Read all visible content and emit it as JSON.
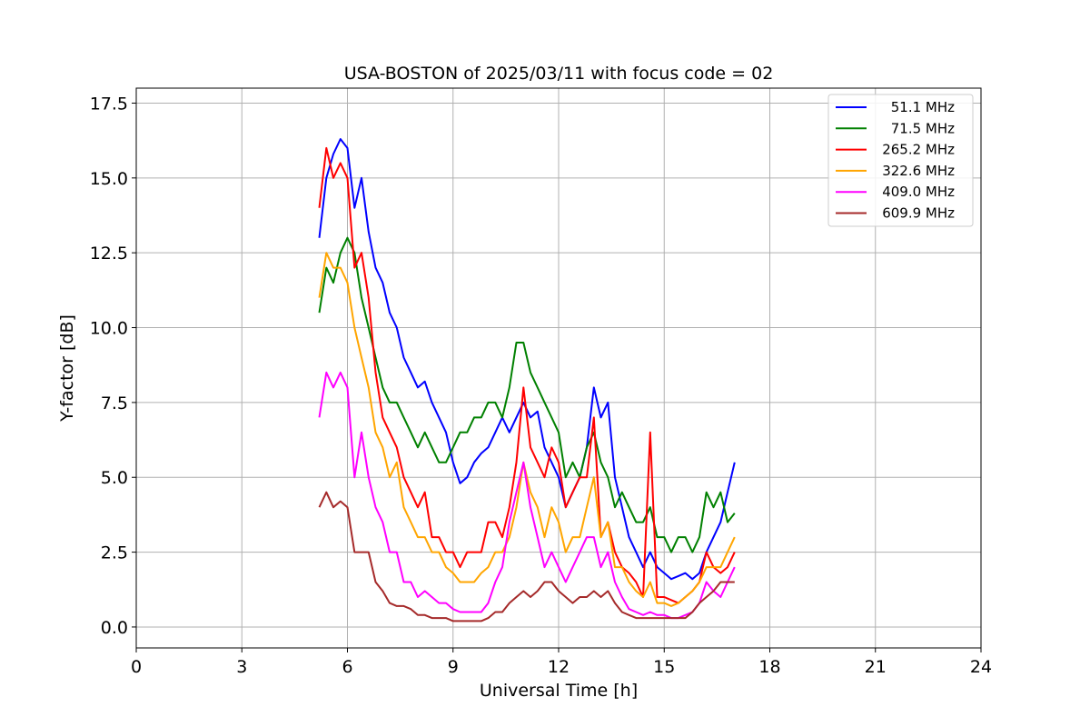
{
  "chart_data": {
    "type": "line",
    "title": "USA-BOSTON of 2025/03/11 with focus code = 02",
    "xlabel": "Universal Time [h]",
    "ylabel": "Y-factor [dB]",
    "xlim": [
      0,
      24
    ],
    "ylim": [
      -0.7,
      18.0
    ],
    "xticks": [
      0,
      3,
      6,
      9,
      12,
      15,
      18,
      21,
      24
    ],
    "xtick_labels": [
      "0",
      "3",
      "6",
      "9",
      "12",
      "15",
      "18",
      "21",
      "24"
    ],
    "yticks": [
      0.0,
      2.5,
      5.0,
      7.5,
      10.0,
      12.5,
      15.0,
      17.5
    ],
    "ytick_labels": [
      "0.0",
      "2.5",
      "5.0",
      "7.5",
      "10.0",
      "12.5",
      "15.0",
      "17.5"
    ],
    "grid": true,
    "legend_position": "top-right",
    "series": [
      {
        "name": "51.1 MHz",
        "color": "#0000ff",
        "x": [
          5.2,
          5.4,
          5.6,
          5.8,
          6.0,
          6.2,
          6.4,
          6.6,
          6.8,
          7.0,
          7.2,
          7.4,
          7.6,
          7.8,
          8.0,
          8.2,
          8.4,
          8.6,
          8.8,
          9.0,
          9.2,
          9.4,
          9.6,
          9.8,
          10.0,
          10.2,
          10.4,
          10.6,
          10.8,
          11.0,
          11.2,
          11.4,
          11.6,
          11.8,
          12.0,
          12.2,
          12.4,
          12.6,
          12.8,
          13.0,
          13.2,
          13.4,
          13.6,
          13.8,
          14.0,
          14.2,
          14.4,
          14.6,
          14.8,
          15.0,
          15.2,
          15.4,
          15.6,
          15.8,
          16.0,
          16.2,
          16.4,
          16.6,
          16.8,
          17.0
        ],
        "y": [
          13.0,
          15.0,
          15.8,
          16.3,
          16.0,
          14.0,
          15.0,
          13.2,
          12.0,
          11.5,
          10.5,
          10.0,
          9.0,
          8.5,
          8.0,
          8.2,
          7.5,
          7.0,
          6.5,
          5.5,
          4.8,
          5.0,
          5.5,
          5.8,
          6.0,
          6.5,
          7.0,
          6.5,
          7.0,
          7.5,
          7.0,
          7.2,
          6.0,
          5.5,
          5.0,
          4.0,
          4.5,
          5.0,
          6.0,
          8.0,
          7.0,
          7.5,
          5.0,
          4.0,
          3.0,
          2.5,
          2.0,
          2.5,
          2.0,
          1.8,
          1.6,
          1.7,
          1.8,
          1.6,
          1.8,
          2.5,
          3.0,
          3.5,
          4.5,
          5.5
        ]
      },
      {
        "name": "71.5 MHz",
        "color": "#008000",
        "x": [
          5.2,
          5.4,
          5.6,
          5.8,
          6.0,
          6.2,
          6.4,
          6.6,
          6.8,
          7.0,
          7.2,
          7.4,
          7.6,
          7.8,
          8.0,
          8.2,
          8.4,
          8.6,
          8.8,
          9.0,
          9.2,
          9.4,
          9.6,
          9.8,
          10.0,
          10.2,
          10.4,
          10.6,
          10.8,
          11.0,
          11.2,
          11.4,
          11.6,
          11.8,
          12.0,
          12.2,
          12.4,
          12.6,
          12.8,
          13.0,
          13.2,
          13.4,
          13.6,
          13.8,
          14.0,
          14.2,
          14.4,
          14.6,
          14.8,
          15.0,
          15.2,
          15.4,
          15.6,
          15.8,
          16.0,
          16.2,
          16.4,
          16.6,
          16.8,
          17.0
        ],
        "y": [
          10.5,
          12.0,
          11.5,
          12.5,
          13.0,
          12.5,
          11.0,
          10.0,
          9.0,
          8.0,
          7.5,
          7.5,
          7.0,
          6.5,
          6.0,
          6.5,
          6.0,
          5.5,
          5.5,
          6.0,
          6.5,
          6.5,
          7.0,
          7.0,
          7.5,
          7.5,
          7.0,
          8.0,
          9.5,
          9.5,
          8.5,
          8.0,
          7.5,
          7.0,
          6.5,
          5.0,
          5.5,
          5.0,
          6.0,
          6.5,
          5.5,
          5.0,
          4.0,
          4.5,
          4.0,
          3.5,
          3.5,
          4.0,
          3.0,
          3.0,
          2.5,
          3.0,
          3.0,
          2.5,
          3.0,
          4.5,
          4.0,
          4.5,
          3.5,
          3.8
        ]
      },
      {
        "name": "265.2 MHz",
        "color": "#ff0000",
        "x": [
          5.2,
          5.4,
          5.6,
          5.8,
          6.0,
          6.2,
          6.4,
          6.6,
          6.8,
          7.0,
          7.2,
          7.4,
          7.6,
          7.8,
          8.0,
          8.2,
          8.4,
          8.6,
          8.8,
          9.0,
          9.2,
          9.4,
          9.6,
          9.8,
          10.0,
          10.2,
          10.4,
          10.6,
          10.8,
          11.0,
          11.2,
          11.4,
          11.6,
          11.8,
          12.0,
          12.2,
          12.4,
          12.6,
          12.8,
          13.0,
          13.2,
          13.4,
          13.6,
          13.8,
          14.0,
          14.2,
          14.4,
          14.6,
          14.8,
          15.0,
          15.2,
          15.4,
          15.6,
          15.8,
          16.0,
          16.2,
          16.4,
          16.6,
          16.8,
          17.0
        ],
        "y": [
          14.0,
          16.0,
          15.0,
          15.5,
          15.0,
          12.0,
          12.5,
          11.0,
          8.5,
          7.0,
          6.5,
          6.0,
          5.0,
          4.5,
          4.0,
          4.5,
          3.0,
          3.0,
          2.5,
          2.5,
          2.0,
          2.5,
          2.5,
          2.5,
          3.5,
          3.5,
          3.0,
          4.0,
          5.5,
          8.0,
          6.0,
          5.5,
          5.0,
          6.0,
          5.5,
          4.0,
          4.5,
          5.0,
          5.0,
          7.0,
          3.0,
          3.5,
          2.5,
          2.0,
          1.8,
          1.5,
          1.0,
          6.5,
          1.0,
          1.0,
          0.9,
          0.8,
          1.0,
          1.2,
          1.5,
          2.5,
          2.0,
          1.8,
          2.0,
          2.5
        ]
      },
      {
        "name": "322.6 MHz",
        "color": "#ffa500",
        "x": [
          5.2,
          5.4,
          5.6,
          5.8,
          6.0,
          6.2,
          6.4,
          6.6,
          6.8,
          7.0,
          7.2,
          7.4,
          7.6,
          7.8,
          8.0,
          8.2,
          8.4,
          8.6,
          8.8,
          9.0,
          9.2,
          9.4,
          9.6,
          9.8,
          10.0,
          10.2,
          10.4,
          10.6,
          10.8,
          11.0,
          11.2,
          11.4,
          11.6,
          11.8,
          12.0,
          12.2,
          12.4,
          12.6,
          12.8,
          13.0,
          13.2,
          13.4,
          13.6,
          13.8,
          14.0,
          14.2,
          14.4,
          14.6,
          14.8,
          15.0,
          15.2,
          15.4,
          15.6,
          15.8,
          16.0,
          16.2,
          16.4,
          16.6,
          16.8,
          17.0
        ],
        "y": [
          11.0,
          12.5,
          12.0,
          12.0,
          11.5,
          10.0,
          9.0,
          8.0,
          6.5,
          6.0,
          5.0,
          5.5,
          4.0,
          3.5,
          3.0,
          3.0,
          2.5,
          2.5,
          2.0,
          1.8,
          1.5,
          1.5,
          1.5,
          1.8,
          2.0,
          2.5,
          2.5,
          3.0,
          4.0,
          5.5,
          4.5,
          4.0,
          3.0,
          4.0,
          3.5,
          2.5,
          3.0,
          3.0,
          4.0,
          5.0,
          3.0,
          3.5,
          2.0,
          2.0,
          1.5,
          1.2,
          1.0,
          1.5,
          0.8,
          0.8,
          0.7,
          0.8,
          1.0,
          1.2,
          1.5,
          2.0,
          2.0,
          2.0,
          2.5,
          3.0
        ]
      },
      {
        "name": "409.0 MHz",
        "color": "#ff00ff",
        "x": [
          5.2,
          5.4,
          5.6,
          5.8,
          6.0,
          6.2,
          6.4,
          6.6,
          6.8,
          7.0,
          7.2,
          7.4,
          7.6,
          7.8,
          8.0,
          8.2,
          8.4,
          8.6,
          8.8,
          9.0,
          9.2,
          9.4,
          9.6,
          9.8,
          10.0,
          10.2,
          10.4,
          10.6,
          10.8,
          11.0,
          11.2,
          11.4,
          11.6,
          11.8,
          12.0,
          12.2,
          12.4,
          12.6,
          12.8,
          13.0,
          13.2,
          13.4,
          13.6,
          13.8,
          14.0,
          14.2,
          14.4,
          14.6,
          14.8,
          15.0,
          15.2,
          15.4,
          15.6,
          15.8,
          16.0,
          16.2,
          16.4,
          16.6,
          16.8,
          17.0
        ],
        "y": [
          7.0,
          8.5,
          8.0,
          8.5,
          8.0,
          5.0,
          6.5,
          5.0,
          4.0,
          3.5,
          2.5,
          2.5,
          1.5,
          1.5,
          1.0,
          1.2,
          1.0,
          0.8,
          0.8,
          0.6,
          0.5,
          0.5,
          0.5,
          0.5,
          0.8,
          1.5,
          2.0,
          3.5,
          4.5,
          5.5,
          4.0,
          3.0,
          2.0,
          2.5,
          2.0,
          1.5,
          2.0,
          2.5,
          3.0,
          3.0,
          2.0,
          2.5,
          1.5,
          1.0,
          0.6,
          0.5,
          0.4,
          0.5,
          0.4,
          0.4,
          0.3,
          0.3,
          0.4,
          0.5,
          0.8,
          1.5,
          1.2,
          1.0,
          1.5,
          2.0
        ]
      },
      {
        "name": "609.9 MHz",
        "color": "#a52a2a",
        "x": [
          5.2,
          5.4,
          5.6,
          5.8,
          6.0,
          6.2,
          6.4,
          6.6,
          6.8,
          7.0,
          7.2,
          7.4,
          7.6,
          7.8,
          8.0,
          8.2,
          8.4,
          8.6,
          8.8,
          9.0,
          9.2,
          9.4,
          9.6,
          9.8,
          10.0,
          10.2,
          10.4,
          10.6,
          10.8,
          11.0,
          11.2,
          11.4,
          11.6,
          11.8,
          12.0,
          12.2,
          12.4,
          12.6,
          12.8,
          13.0,
          13.2,
          13.4,
          13.6,
          13.8,
          14.0,
          14.2,
          14.4,
          14.6,
          14.8,
          15.0,
          15.2,
          15.4,
          15.6,
          15.8,
          16.0,
          16.2,
          16.4,
          16.6,
          16.8,
          17.0
        ],
        "y": [
          4.0,
          4.5,
          4.0,
          4.2,
          4.0,
          2.5,
          2.5,
          2.5,
          1.5,
          1.2,
          0.8,
          0.7,
          0.7,
          0.6,
          0.4,
          0.4,
          0.3,
          0.3,
          0.3,
          0.2,
          0.2,
          0.2,
          0.2,
          0.2,
          0.3,
          0.5,
          0.5,
          0.8,
          1.0,
          1.2,
          1.0,
          1.2,
          1.5,
          1.5,
          1.2,
          1.0,
          0.8,
          1.0,
          1.0,
          1.2,
          1.0,
          1.2,
          0.8,
          0.5,
          0.4,
          0.3,
          0.3,
          0.3,
          0.3,
          0.3,
          0.3,
          0.3,
          0.3,
          0.5,
          0.8,
          1.0,
          1.2,
          1.5,
          1.5,
          1.5
        ]
      }
    ]
  }
}
